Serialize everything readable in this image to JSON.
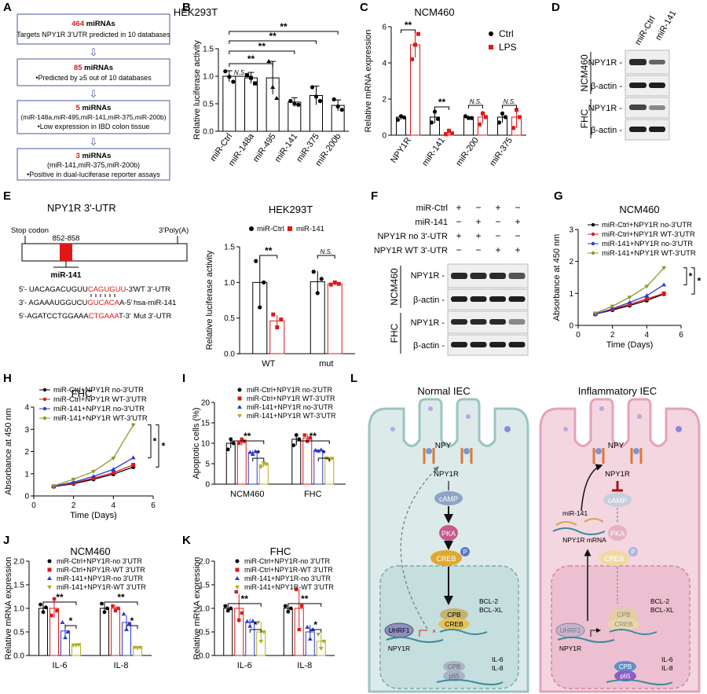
{
  "panels": {
    "A": "A",
    "B": "B",
    "C": "C",
    "D": "D",
    "E": "E",
    "F": "F",
    "G": "G",
    "H": "H",
    "I": "I",
    "J": "J",
    "K": "K",
    "L": "L"
  },
  "flow": {
    "box1": {
      "num": "464",
      "rest": " miRNAs",
      "sub": "Targets NPY1R 3’UTR predicted in 10 databases"
    },
    "box2": {
      "num": "85",
      "rest": " miRNAs",
      "sub": "Predicted  by ≥5 out of 10 databases"
    },
    "box3": {
      "num": "5",
      "rest": " miRNAs",
      "sub1": "(miR-148a,miR-495,miR-141,miR-375,miR-200b)",
      "sub2": "Low expression in IBD colon tissue"
    },
    "box4": {
      "num": "3",
      "rest": " miRNAs",
      "sub1": "(miR-141,miR-375,miR-200b)",
      "sub2": "Positive in dual-luciferase reporter assays"
    },
    "bullet": "•",
    "arrow": "⇩"
  },
  "stars": {
    "two": "**",
    "one": "*",
    "ns": "N.S."
  },
  "panelD": {
    "cols": [
      "miR-Ctrl",
      "miR-141"
    ],
    "groups": [
      "NCM460",
      "FHC"
    ],
    "bands": [
      "NPY1R -",
      "β-actin -"
    ]
  },
  "panelE": {
    "title": "NPY1R 3'-UTR",
    "stop": "Stop codon",
    "polyA": "3'Poly(A)",
    "site": "852-858",
    "mir": "miR-141",
    "seqs": [
      {
        "a": "5'- UACAGACUGUU",
        "b": "CAGUGUU",
        "c": "-3'",
        "lab": "WT 3'-UTR"
      },
      {
        "a": "3'- AGAAAUGGUCU",
        "b": "GUCACA",
        "c": "A-5'",
        "lab": "hsa-miR-141"
      },
      {
        "a": "5'-AGATCCTGGAAA",
        "b": "CTGAAA",
        "c": "T-3'",
        "lab": "Mut 3'-UTR"
      }
    ]
  },
  "panelF": {
    "rows": [
      "miR-Ctrl",
      "miR-141",
      "NPY1R no 3'-UTR",
      "NPY1R WT 3'-UTR"
    ],
    "signs": [
      [
        "+",
        "−",
        "+",
        "−"
      ],
      [
        "−",
        "+",
        "−",
        "+"
      ],
      [
        "+",
        "+",
        "−",
        "−"
      ],
      [
        "−",
        "−",
        "+",
        "+"
      ]
    ],
    "groups": [
      "NCM460",
      "FHC"
    ],
    "bands": [
      "NPY1R -",
      "β-actin -"
    ]
  },
  "panelL": {
    "normal": "Normal IEC",
    "inflam": "Inflammatory IEC",
    "npy": "NPY",
    "npy1r": "NPY1R",
    "camp": "cAMP",
    "pka": "PKA",
    "creb": "CREB",
    "p": "P",
    "cpb": "CPB",
    "bcl2": "BCL-2",
    "bclxl": "BCL-XL",
    "uhrf1": "UHRF1",
    "il6": "IL-6",
    "il8": "IL-8",
    "p65": "p65",
    "mir141": "miR-141",
    "mrna": "NPY1R mRNA"
  },
  "chart_data": [
    {
      "id": "B",
      "type": "bar",
      "title": "HEK293T",
      "ylabel": "Relative luciferase activity",
      "categories": [
        "miR-Ctrl",
        "miR-148a",
        "miR-495",
        "miR-141",
        "miR-375",
        "miR-200b"
      ],
      "values": [
        1.0,
        0.97,
        0.97,
        0.53,
        0.65,
        0.47
      ],
      "errors": [
        0.1,
        0.1,
        0.3,
        0.08,
        0.17,
        0.1
      ],
      "points": [
        [
          1.09,
          0.99,
          0.9
        ],
        [
          1.02,
          0.97,
          0.87
        ],
        [
          1.27,
          0.8,
          0.6
        ],
        [
          0.55,
          0.5,
          0.48
        ],
        [
          0.8,
          0.63,
          0.55
        ],
        [
          0.58,
          0.45,
          0.39
        ]
      ],
      "ylim": [
        0,
        1.5
      ],
      "yticks": [
        "0.0",
        "0.5",
        "1.0",
        "1.5"
      ],
      "annotations": [
        "N.S.",
        "N.S.",
        "**",
        "**",
        "**",
        "**"
      ]
    },
    {
      "id": "C",
      "type": "bar",
      "title": "NCM460",
      "ylabel": "Relative mRNA expression",
      "categories": [
        "NPY1R",
        "miR-141",
        "miR-200",
        "miR-375"
      ],
      "series": [
        {
          "name": "Ctrl",
          "values": [
            1.0,
            1.0,
            1.0,
            1.0
          ]
        },
        {
          "name": "LPS",
          "values": [
            5.0,
            0.15,
            1.0,
            1.0
          ]
        }
      ],
      "ylim": [
        0,
        6
      ],
      "yticks": [
        "0",
        "2",
        "4",
        "6"
      ],
      "annotations": [
        "**",
        "**",
        "N.S.",
        "N.S."
      ]
    },
    {
      "id": "E",
      "type": "bar",
      "title": "HEK293T",
      "ylabel": "Relative luciferase activity",
      "categories": [
        "WT",
        "mut"
      ],
      "series": [
        {
          "name": "miR-Ctrl",
          "values": [
            1.0,
            1.01
          ]
        },
        {
          "name": "miR-141",
          "values": [
            0.46,
            0.98
          ]
        }
      ],
      "ylim": [
        0,
        1.5
      ],
      "yticks": [
        "0.0",
        "0.5",
        "1.0",
        "1.5"
      ],
      "annotations": [
        "**",
        "N.S."
      ]
    },
    {
      "id": "G",
      "type": "line",
      "title": "NCM460",
      "xlabel": "Time (Days)",
      "ylabel": "Absorbance at 450 nm",
      "x": [
        1,
        2,
        3,
        4,
        5
      ],
      "xticks": [
        "0",
        "2",
        "4",
        "6"
      ],
      "yticks": [
        "0",
        "1",
        "2",
        "3"
      ],
      "ylim": [
        0,
        3
      ],
      "series": [
        {
          "name": "miR-Ctrl+NPY1R no-3'UTR",
          "values": [
            0.35,
            0.48,
            0.62,
            0.78,
            0.98
          ]
        },
        {
          "name": "miR-Ctrl+NPY1R WT-3'UTR",
          "values": [
            0.35,
            0.5,
            0.66,
            0.83,
            1.0
          ]
        },
        {
          "name": "miR-141+NPY1R no-3'UTR",
          "values": [
            0.36,
            0.52,
            0.72,
            0.93,
            1.27
          ]
        },
        {
          "name": "miR-141+NPY1R WT-3'UTR",
          "values": [
            0.38,
            0.6,
            0.88,
            1.22,
            1.8
          ]
        }
      ],
      "annotations": [
        "*",
        "*"
      ]
    },
    {
      "id": "H",
      "type": "line",
      "title": "FHC",
      "xlabel": "Time (Days)",
      "ylabel": "Absorbance at 450 nm",
      "x": [
        1,
        2,
        3,
        4,
        5
      ],
      "xticks": [
        "0",
        "2",
        "4",
        "6"
      ],
      "yticks": [
        "0",
        "1",
        "2",
        "3",
        "4"
      ],
      "ylim": [
        0,
        4
      ],
      "series": [
        {
          "name": "miR-Ctrl+NPY1R no-3'UTR",
          "values": [
            0.42,
            0.55,
            0.75,
            0.98,
            1.3
          ]
        },
        {
          "name": "miR-Ctrl+NPY1R WT-3'UTR",
          "values": [
            0.43,
            0.58,
            0.8,
            1.05,
            1.4
          ]
        },
        {
          "name": "miR-141+NPY1R no-3'UTR",
          "values": [
            0.44,
            0.62,
            0.88,
            1.2,
            1.72
          ]
        },
        {
          "name": "miR-141+NPY1R WT-3'UTR",
          "values": [
            0.45,
            0.75,
            1.1,
            1.7,
            3.2
          ]
        }
      ],
      "annotations": [
        "*",
        "*"
      ]
    },
    {
      "id": "I",
      "type": "bar",
      "ylabel": "Apoptotic cells (%)",
      "categories": [
        "NCM460",
        "FHC"
      ],
      "series": [
        {
          "name": "miR-Ctrl+NPY1R no-3'UTR",
          "values": [
            10.0,
            11.0
          ]
        },
        {
          "name": "miR-Ctrl+NPY1R WT-3'UTR",
          "values": [
            10.3,
            11.3
          ]
        },
        {
          "name": "miR-141+NPY1R no-3'UTR",
          "values": [
            7.7,
            8.3
          ]
        },
        {
          "name": "miR-141+NPY1R WT-3'UTR",
          "values": [
            4.8,
            6.2
          ]
        }
      ],
      "ylim": [
        0,
        20
      ],
      "yticks": [
        "0",
        "5",
        "10",
        "15",
        "20"
      ],
      "annotations": [
        "**",
        "*",
        "**",
        "*"
      ]
    },
    {
      "id": "J",
      "type": "bar",
      "title": "NCM460",
      "ylabel": "Relative mRNA expression",
      "categories": [
        "IL-6",
        "IL-8"
      ],
      "series": [
        {
          "name": "miR-Ctrl+NPY1R-no 3'UTR",
          "values": [
            1.0,
            1.0
          ]
        },
        {
          "name": "miR-Ctrl+NPY1R-WT 3'UTR",
          "values": [
            1.0,
            1.0
          ]
        },
        {
          "name": "miR-141+NPY1R-no 3'UTR",
          "values": [
            0.52,
            0.7
          ]
        },
        {
          "name": "miR-141+NPY1R-WT 3'UTR",
          "values": [
            0.22,
            0.17
          ]
        }
      ],
      "ylim": [
        0,
        2.0
      ],
      "yticks": [
        "0.0",
        "0.5",
        "1.0",
        "1.5",
        "2.0"
      ],
      "annotations": [
        "**",
        "*",
        "**",
        "*"
      ]
    },
    {
      "id": "K",
      "type": "bar",
      "title": "FHC",
      "ylabel": "Relative mRNA expression",
      "categories": [
        "IL-6",
        "IL-8"
      ],
      "series": [
        {
          "name": "miR-Ctrl+NPY1R-no 3'UTR",
          "values": [
            1.0,
            1.0
          ]
        },
        {
          "name": "miR-Ctrl+NPY1R-WT 3'UTR",
          "values": [
            1.0,
            1.0
          ]
        },
        {
          "name": "miR-141+NPY1R-no 3'UTR",
          "values": [
            0.7,
            0.5
          ]
        },
        {
          "name": "miR-141+NPY1R-WT 3'UTR",
          "values": [
            0.5,
            0.3
          ]
        }
      ],
      "ylim": [
        0,
        2.0
      ],
      "yticks": [
        "0.0",
        "0.5",
        "1.0",
        "1.5",
        "2.0"
      ],
      "annotations": [
        "**",
        "*",
        "**",
        "*"
      ]
    }
  ]
}
